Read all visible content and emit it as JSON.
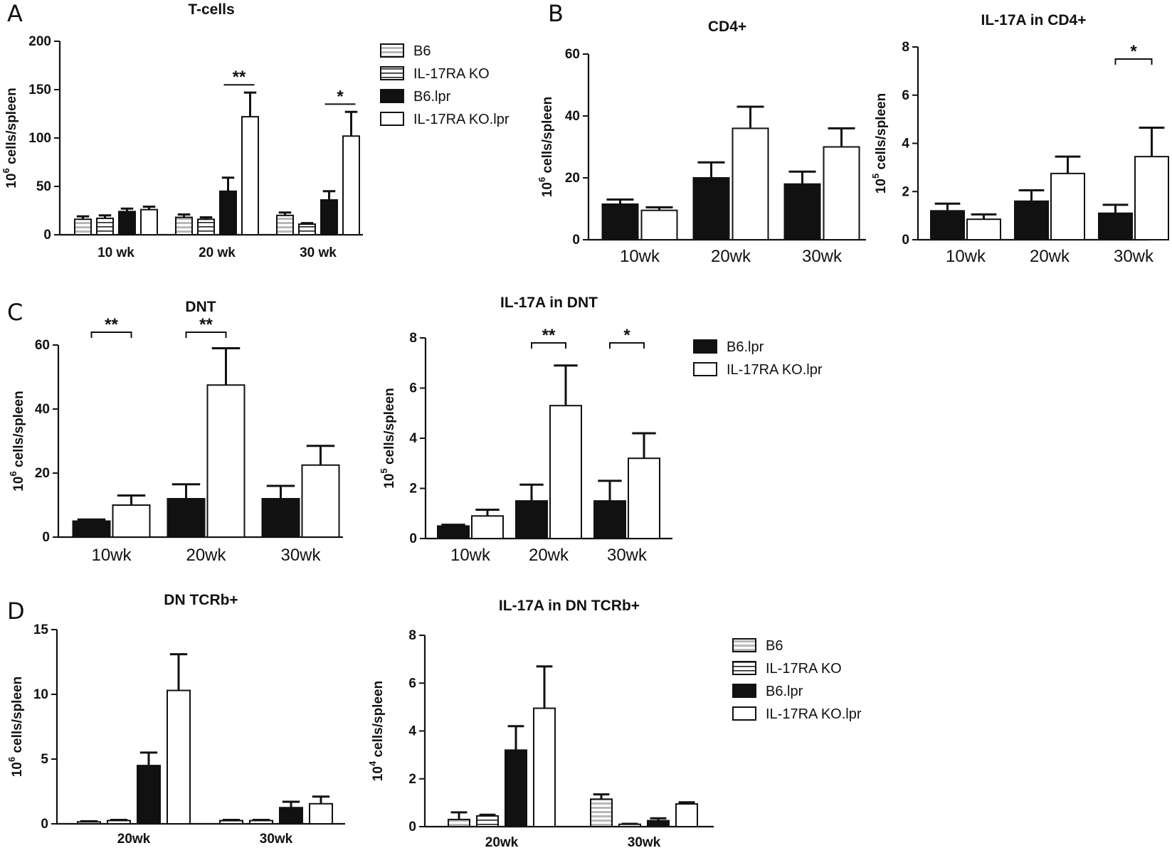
{
  "panel_labels": [
    "A",
    "B",
    "C",
    "D"
  ],
  "legends": [
    {
      "id": "legendA",
      "entries": [
        {
          "label": "B6",
          "fill": "hgray"
        },
        {
          "label": "IL-17RA KO",
          "fill": "hwhite"
        },
        {
          "label": "B6.lpr",
          "fill": "black"
        },
        {
          "label": "IL-17RA KO.lpr",
          "fill": "white"
        }
      ]
    },
    {
      "id": "legendC",
      "entries": [
        {
          "label": "B6.lpr",
          "fill": "black"
        },
        {
          "label": "IL-17RA KO.lpr",
          "fill": "white"
        }
      ]
    },
    {
      "id": "legendD",
      "entries": [
        {
          "label": "B6",
          "fill": "hgray"
        },
        {
          "label": "IL-17RA KO",
          "fill": "hwhite"
        },
        {
          "label": "B6.lpr",
          "fill": "black"
        },
        {
          "label": "IL-17RA KO.lpr",
          "fill": "white"
        }
      ]
    }
  ],
  "colors": {
    "ink": "#111111",
    "hatch_gray": "#bbbbbb",
    "background": "#ffffff"
  },
  "chart_data": [
    {
      "id": "A1",
      "type": "bar",
      "title": "T-cells",
      "ylabel_base": "10",
      "ylabel_exp": "6",
      "ylabel_rest": " cells/spleen",
      "ylim": [
        0,
        200
      ],
      "yticks": [
        "0",
        "50",
        "100",
        "150",
        "200"
      ],
      "categories": [
        "10 wk",
        "20 wk",
        "30 wk"
      ],
      "series": [
        {
          "name": "B6",
          "fill": "hgray",
          "values": [
            16,
            18,
            20
          ],
          "errors": [
            3,
            3,
            3
          ]
        },
        {
          "name": "IL-17RA KO",
          "fill": "hwhite",
          "values": [
            17,
            16,
            11
          ],
          "errors": [
            3,
            2,
            1
          ]
        },
        {
          "name": "B6.lpr",
          "fill": "black",
          "values": [
            24,
            45,
            36
          ],
          "errors": [
            3,
            14,
            9
          ]
        },
        {
          "name": "IL-17RA KO.lpr",
          "fill": "white",
          "values": [
            26,
            122,
            102
          ],
          "errors": [
            3,
            25,
            25
          ]
        }
      ],
      "significance": [
        {
          "category": 1,
          "from": 2,
          "to": 3,
          "label": "**",
          "y": 155,
          "style": "line"
        },
        {
          "category": 2,
          "from": 2,
          "to": 3,
          "label": "*",
          "y": 135,
          "style": "line"
        }
      ]
    },
    {
      "id": "B1",
      "type": "bar",
      "title": "CD4+",
      "ylabel_base": "10",
      "ylabel_exp": "6",
      "ylabel_rest": " cells/spleen",
      "ylim": [
        0,
        60
      ],
      "yticks": [
        "0",
        "20",
        "40",
        "60"
      ],
      "categories": [
        "10wk",
        "20wk",
        "30wk"
      ],
      "series": [
        {
          "name": "B6.lpr",
          "fill": "black",
          "values": [
            11.5,
            20,
            18
          ],
          "errors": [
            1.5,
            5,
            4
          ]
        },
        {
          "name": "IL-17RA KO.lpr",
          "fill": "white",
          "values": [
            9.5,
            36,
            30
          ],
          "errors": [
            1,
            7,
            6
          ]
        }
      ],
      "significance": []
    },
    {
      "id": "B2",
      "type": "bar",
      "title": "IL-17A in CD4+",
      "ylabel_base": "10",
      "ylabel_exp": "5",
      "ylabel_rest": " cells/spleen",
      "ylim": [
        0,
        8
      ],
      "yticks": [
        "0",
        "2",
        "4",
        "6",
        "8"
      ],
      "categories": [
        "10wk",
        "20wk",
        "30wk"
      ],
      "series": [
        {
          "name": "B6.lpr",
          "fill": "black",
          "values": [
            1.2,
            1.6,
            1.1
          ],
          "errors": [
            0.3,
            0.45,
            0.35
          ]
        },
        {
          "name": "IL-17RA KO.lpr",
          "fill": "white",
          "values": [
            0.85,
            2.75,
            3.45
          ],
          "errors": [
            0.2,
            0.7,
            1.2
          ]
        }
      ],
      "significance": [
        {
          "category": 2,
          "from": 0,
          "to": 1,
          "label": "*",
          "y": 7.5,
          "style": "bracket"
        }
      ]
    },
    {
      "id": "C1",
      "type": "bar",
      "title": "DNT",
      "ylabel_base": "10",
      "ylabel_exp": "6",
      "ylabel_rest": " cells/spleen",
      "ylim": [
        0,
        60
      ],
      "yticks": [
        "0",
        "20",
        "40",
        "60"
      ],
      "categories": [
        "10wk",
        "20wk",
        "30wk"
      ],
      "series": [
        {
          "name": "B6.lpr",
          "fill": "black",
          "values": [
            5,
            12,
            12
          ],
          "errors": [
            0.5,
            4.5,
            4
          ]
        },
        {
          "name": "IL-17RA KO.lpr",
          "fill": "white",
          "values": [
            10,
            47.5,
            22.5
          ],
          "errors": [
            3,
            11.5,
            6
          ]
        }
      ],
      "significance": [
        {
          "category": 0,
          "from": 0,
          "to": 1,
          "label": "**",
          "y": 64,
          "style": "bracket"
        },
        {
          "category": 1,
          "from": 0,
          "to": 1,
          "label": "**",
          "y": 64,
          "style": "bracket"
        }
      ]
    },
    {
      "id": "C2",
      "type": "bar",
      "title": "IL-17A in DNT",
      "ylabel_base": "10",
      "ylabel_exp": "5",
      "ylabel_rest": " cells/spleen",
      "ylim": [
        0,
        8
      ],
      "yticks": [
        "0",
        "2",
        "4",
        "6",
        "8"
      ],
      "categories": [
        "10wk",
        "20wk",
        "30wk"
      ],
      "series": [
        {
          "name": "B6.lpr",
          "fill": "black",
          "values": [
            0.5,
            1.5,
            1.5
          ],
          "errors": [
            0.05,
            0.65,
            0.8
          ]
        },
        {
          "name": "IL-17RA KO.lpr",
          "fill": "white",
          "values": [
            0.9,
            5.3,
            3.2
          ],
          "errors": [
            0.25,
            1.6,
            1.0
          ]
        }
      ],
      "significance": [
        {
          "category": 1,
          "from": 0,
          "to": 1,
          "label": "**",
          "y": 7.8,
          "style": "bracket"
        },
        {
          "category": 2,
          "from": 0,
          "to": 1,
          "label": "*",
          "y": 7.8,
          "style": "bracket"
        }
      ]
    },
    {
      "id": "D1",
      "type": "bar",
      "title": "DN TCRb+",
      "ylabel_base": "10",
      "ylabel_exp": "6",
      "ylabel_rest": " cells/spleen",
      "ylim": [
        0,
        15
      ],
      "yticks": [
        "0",
        "5",
        "10",
        "15"
      ],
      "categories": [
        "20wk",
        "30wk"
      ],
      "series": [
        {
          "name": "B6",
          "fill": "hgray",
          "values": [
            0.15,
            0.25
          ],
          "errors": [
            0.05,
            0.05
          ]
        },
        {
          "name": "IL-17RA KO",
          "fill": "hwhite",
          "values": [
            0.25,
            0.25
          ],
          "errors": [
            0.05,
            0.05
          ]
        },
        {
          "name": "B6.lpr",
          "fill": "black",
          "values": [
            4.5,
            1.25
          ],
          "errors": [
            1.0,
            0.45
          ]
        },
        {
          "name": "IL-17RA KO.lpr",
          "fill": "white",
          "values": [
            10.3,
            1.55
          ],
          "errors": [
            2.8,
            0.55
          ]
        }
      ],
      "significance": []
    },
    {
      "id": "D2",
      "type": "bar",
      "title": "IL-17A in DN TCRb+",
      "ylabel_base": "10",
      "ylabel_exp": "4",
      "ylabel_rest": " cells/spleen",
      "ylim": [
        0,
        8
      ],
      "yticks": [
        "0",
        "2",
        "4",
        "6",
        "8"
      ],
      "categories": [
        "20wk",
        "30wk"
      ],
      "series": [
        {
          "name": "B6",
          "fill": "hgray",
          "values": [
            0.3,
            1.15
          ],
          "errors": [
            0.3,
            0.2
          ]
        },
        {
          "name": "IL-17RA KO",
          "fill": "hwhite",
          "values": [
            0.45,
            0.1
          ],
          "errors": [
            0.05,
            0.02
          ]
        },
        {
          "name": "B6.lpr",
          "fill": "black",
          "values": [
            3.2,
            0.25
          ],
          "errors": [
            1.0,
            0.1
          ]
        },
        {
          "name": "IL-17RA KO.lpr",
          "fill": "white",
          "values": [
            4.95,
            0.95
          ],
          "errors": [
            1.75,
            0.07
          ]
        }
      ],
      "significance": []
    }
  ]
}
